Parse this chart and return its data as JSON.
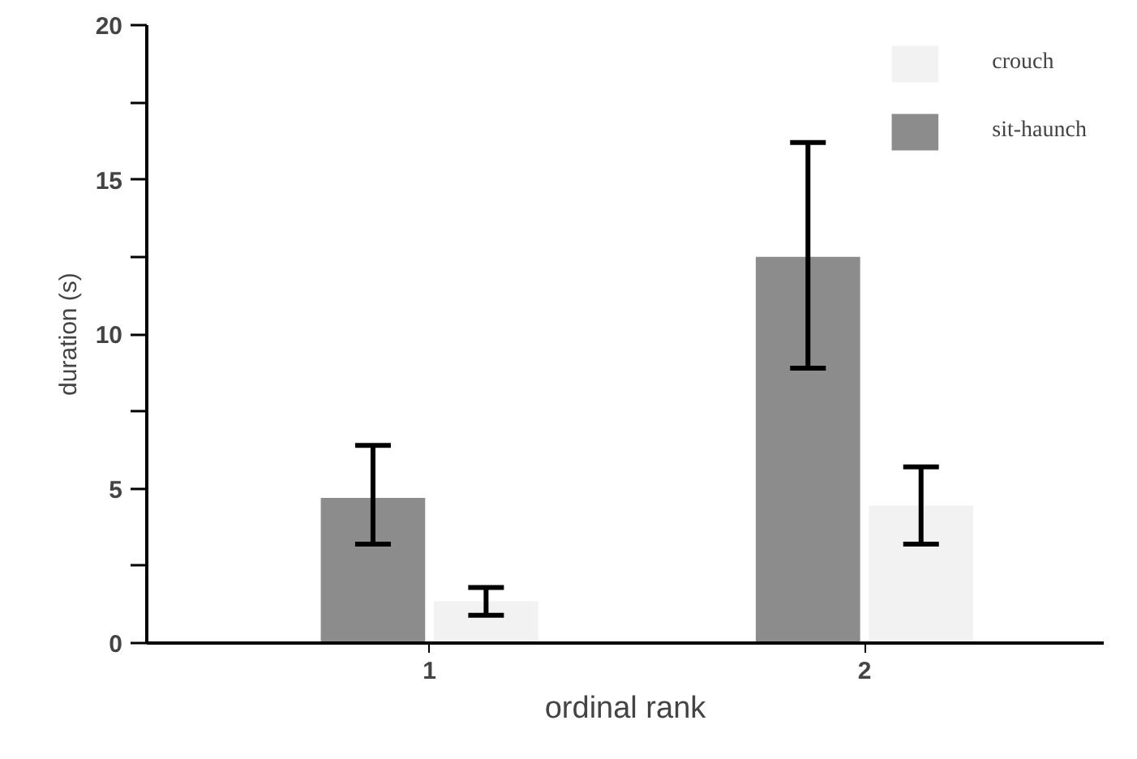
{
  "chart_data": {
    "type": "bar",
    "xlabel": "ordinal rank",
    "ylabel": "duration (s)",
    "categories": [
      "1",
      "2"
    ],
    "series": [
      {
        "name": "sit-haunch",
        "color": "#8c8c8c",
        "values": [
          4.7,
          12.5
        ],
        "errors": [
          [
            3.2,
            6.4
          ],
          [
            8.9,
            16.2
          ]
        ]
      },
      {
        "name": "crouch",
        "color": "#f2f2f2",
        "values": [
          1.35,
          4.45
        ],
        "errors": [
          [
            0.9,
            1.8
          ],
          [
            3.2,
            5.7
          ]
        ]
      }
    ],
    "ylim": [
      0,
      20
    ],
    "yticks": [
      0,
      {
        "value": 2.5,
        "label": null
      },
      5,
      {
        "value": 7.5,
        "label": null
      },
      10,
      {
        "value": 12.5,
        "label": null
      },
      15,
      {
        "value": 17.5,
        "label": null
      },
      20
    ],
    "grid": false,
    "legend": "top right"
  }
}
